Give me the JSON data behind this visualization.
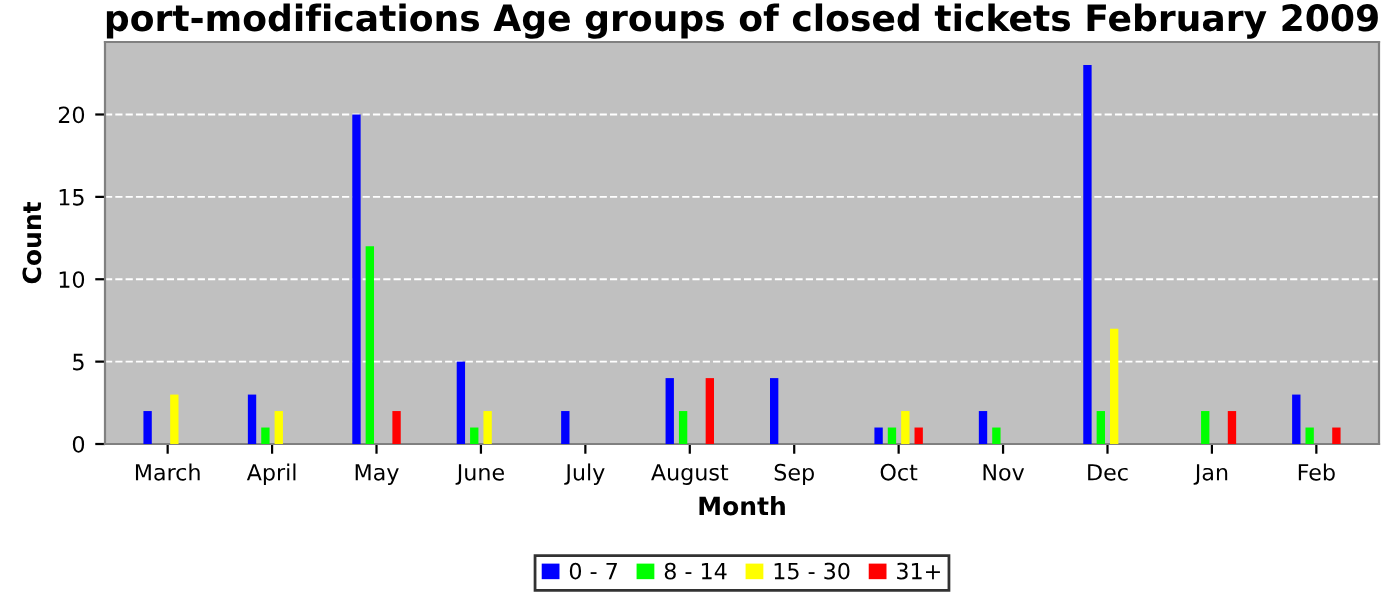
{
  "chart_data": {
    "type": "bar",
    "title": "port-modifications Age groups of closed tickets February 2009",
    "xlabel": "Month",
    "ylabel": "Count",
    "categories": [
      "March",
      "April",
      "May",
      "June",
      "July",
      "August",
      "Sep",
      "Oct",
      "Nov",
      "Dec",
      "Jan",
      "Feb"
    ],
    "series": [
      {
        "name": "0 - 7",
        "color": "#0000ff",
        "values": [
          2,
          3,
          20,
          5,
          2,
          4,
          4,
          1,
          2,
          23,
          0,
          3
        ]
      },
      {
        "name": "8 - 14",
        "color": "#00ff00",
        "values": [
          0,
          1,
          12,
          1,
          0,
          2,
          0,
          1,
          1,
          2,
          2,
          1
        ]
      },
      {
        "name": "15 - 30",
        "color": "#ffff00",
        "values": [
          3,
          2,
          0,
          2,
          0,
          0,
          0,
          2,
          0,
          7,
          0,
          0
        ]
      },
      {
        "name": "31+",
        "color": "#ff0000",
        "values": [
          0,
          0,
          2,
          0,
          0,
          4,
          0,
          1,
          0,
          0,
          2,
          1
        ]
      }
    ],
    "ylim": [
      0,
      24.4
    ],
    "yticks": [
      0,
      5,
      10,
      15,
      20
    ],
    "grid": "y",
    "legend": "bottom"
  }
}
